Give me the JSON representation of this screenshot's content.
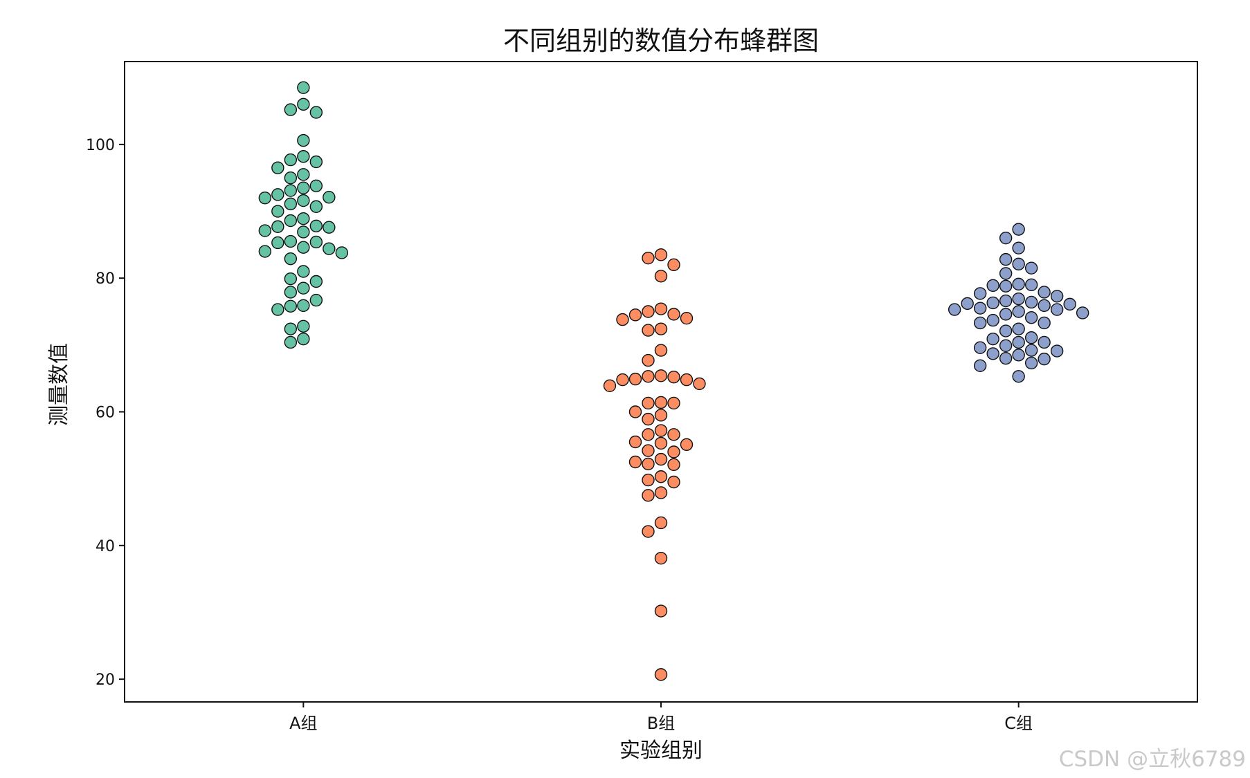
{
  "chart_data": {
    "type": "scatter",
    "subtype": "swarm",
    "title": "不同组别的数值分布蜂群图",
    "xlabel": "实验组别",
    "ylabel": "测量数值",
    "categories": [
      "A组",
      "B组",
      "C组"
    ],
    "ylim": [
      16.6,
      112.4
    ],
    "yticks": [
      20,
      40,
      60,
      80,
      100
    ],
    "grid": false,
    "legend": "none",
    "series": [
      {
        "category": "A组",
        "color": "#66c2a5",
        "values": [
          108.5,
          106,
          105.2,
          104.8,
          100.6,
          98.2,
          97.7,
          97.4,
          96.5,
          95.5,
          95,
          93.8,
          93.5,
          93.1,
          92.5,
          92.1,
          92,
          91.6,
          91.1,
          90.7,
          90,
          88.9,
          88.6,
          87.8,
          87.7,
          87.6,
          87.1,
          86.9,
          85.5,
          85.4,
          85.3,
          84.6,
          84.4,
          84,
          83.8,
          82.9,
          81,
          79.9,
          79.5,
          78.5,
          77.9,
          76.7,
          75.9,
          75.8,
          75.3,
          72.8,
          72.4,
          70.9,
          70.4
        ]
      },
      {
        "category": "B组",
        "color": "#fc8d62",
        "values": [
          83.5,
          83,
          82,
          80.3,
          75.4,
          75,
          74.6,
          74.5,
          74,
          73.8,
          72.4,
          72.2,
          69.2,
          67.7,
          65.4,
          65.3,
          65.2,
          64.9,
          64.8,
          64.8,
          64.2,
          63.9,
          61.4,
          61.3,
          61.3,
          60,
          59.5,
          58.9,
          57.2,
          56.6,
          56.6,
          55.5,
          55.3,
          55.1,
          54.2,
          54,
          52.9,
          52.5,
          52.2,
          52.1,
          50.3,
          49.8,
          49.5,
          47.9,
          47.5,
          43.4,
          42.1,
          38.1,
          30.2,
          20.7
        ]
      },
      {
        "category": "C组",
        "color": "#8da0cb",
        "values": [
          87.3,
          86,
          84.5,
          82.8,
          82.1,
          81.5,
          80.7,
          79.1,
          79,
          78.9,
          78.8,
          77.9,
          77.7,
          77.3,
          76.9,
          76.6,
          76.4,
          76.3,
          76.2,
          76.1,
          75.9,
          75.5,
          75.3,
          75.3,
          75,
          74.8,
          74.6,
          74.1,
          73.7,
          73.3,
          73.3,
          72.4,
          72.1,
          71.1,
          70.9,
          70.4,
          70.4,
          69.9,
          69.6,
          69.2,
          69.1,
          68.7,
          68.5,
          68,
          67.9,
          67.3,
          66.9,
          65.3
        ]
      }
    ]
  },
  "watermark": "CSDN @立秋6789"
}
